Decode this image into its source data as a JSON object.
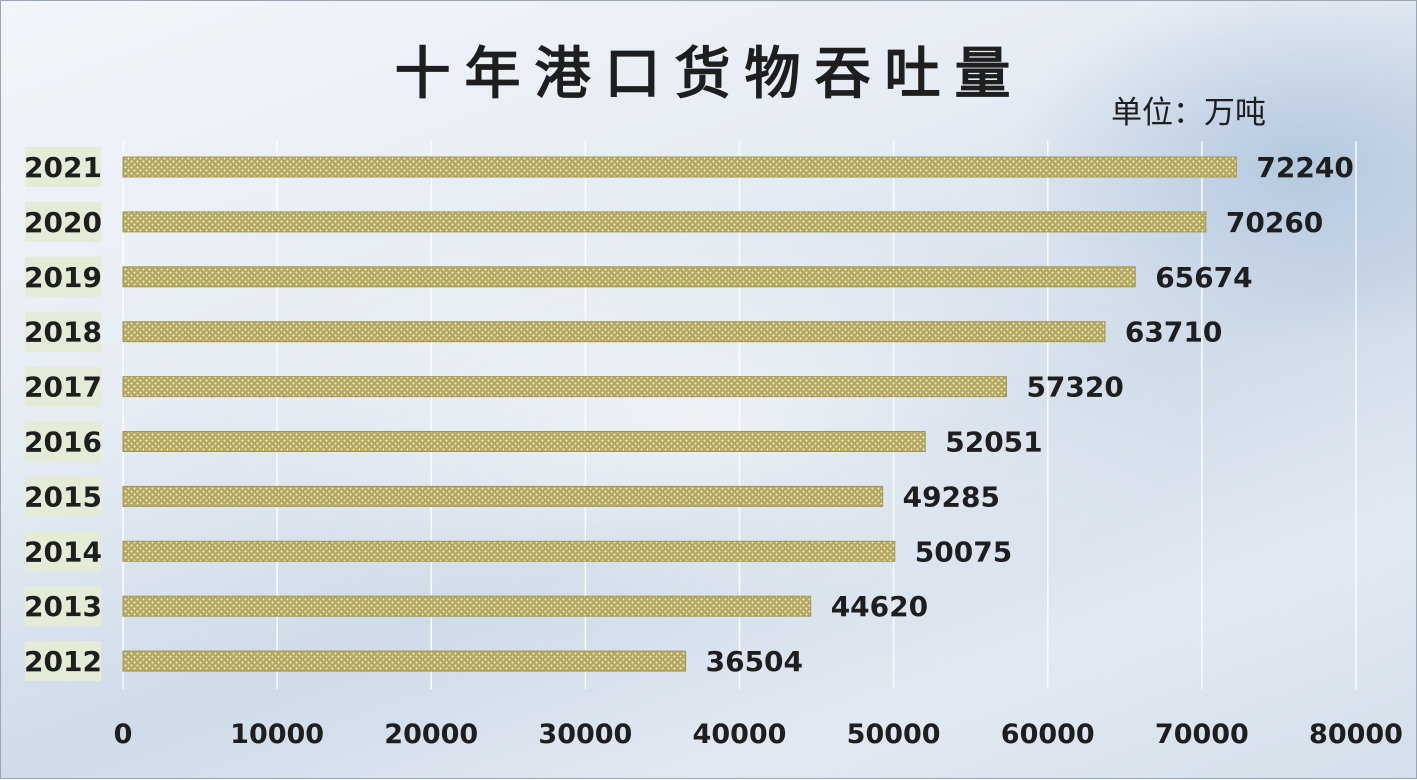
{
  "chart_data": {
    "type": "bar",
    "orientation": "horizontal",
    "title": "十年港口货物吞吐量",
    "unit_label": "单位：万吨",
    "categories": [
      "2021",
      "2020",
      "2019",
      "2018",
      "2017",
      "2016",
      "2015",
      "2014",
      "2013",
      "2012"
    ],
    "values": [
      72240,
      70260,
      65674,
      63710,
      57320,
      52051,
      49285,
      50075,
      44620,
      36504
    ],
    "xlim": [
      0,
      80000
    ],
    "x_ticks": [
      0,
      10000,
      20000,
      30000,
      40000,
      50000,
      60000,
      70000,
      80000
    ],
    "grid": "vertical",
    "data_labels": true,
    "bar_color": "#b4a860"
  }
}
